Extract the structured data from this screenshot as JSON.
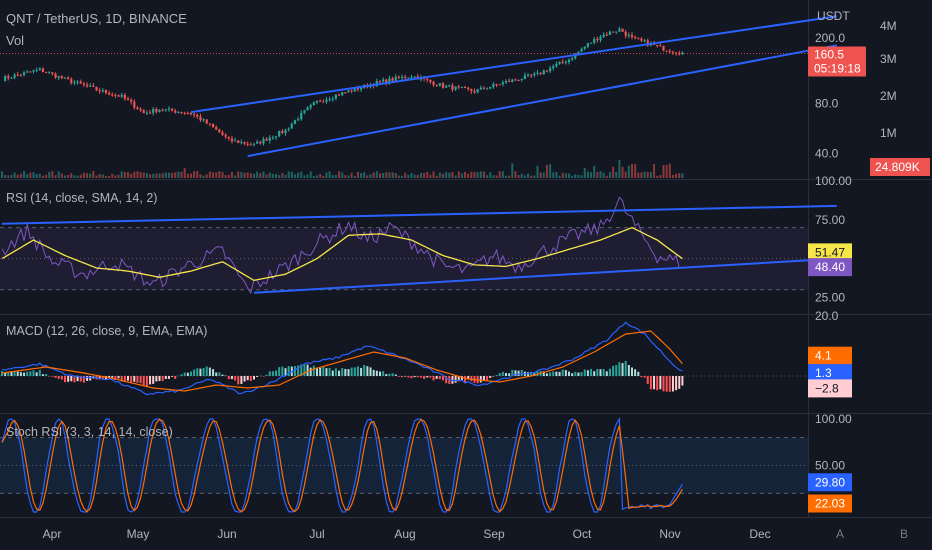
{
  "header": {
    "symbol_line": "QNT / TetherUS, 1D, BINANCE",
    "volume_label": "Vol",
    "currency": "USDT"
  },
  "colors": {
    "background": "#131722",
    "up": "#26a69a",
    "down": "#ef5350",
    "trendline": "#2962ff",
    "rsi_line": "#7e57c2",
    "rsi_ma": "#f7e64a",
    "macd_line": "#2962ff",
    "signal_line": "#ff6d00",
    "stoch_k": "#2962ff",
    "stoch_d": "#ff6d00"
  },
  "bottom_bar": {
    "a": "A",
    "b": "B"
  },
  "chart_data": [
    {
      "type": "candlestick",
      "panel": "price",
      "x_ticks": [
        "Apr",
        "May",
        "Jun",
        "Jul",
        "Aug",
        "Sep",
        "Oct",
        "Nov",
        "Dec"
      ],
      "y_ticks": [
        "200.0",
        "80.0",
        "40.0"
      ],
      "y_scale": "log",
      "ylim": [
        30,
        320
      ],
      "volume_ticks": [
        "4M",
        "3M",
        "2M",
        "1M"
      ],
      "price_keypoints": [
        [
          0,
          113
        ],
        [
          12,
          128
        ],
        [
          20,
          112
        ],
        [
          30,
          97
        ],
        [
          38,
          88
        ],
        [
          45,
          70
        ],
        [
          50,
          74
        ],
        [
          60,
          70
        ],
        [
          72,
          48
        ],
        [
          80,
          45
        ],
        [
          90,
          55
        ],
        [
          100,
          82
        ],
        [
          110,
          95
        ],
        [
          120,
          108
        ],
        [
          130,
          118
        ],
        [
          140,
          102
        ],
        [
          150,
          95
        ],
        [
          160,
          108
        ],
        [
          170,
          120
        ],
        [
          180,
          148
        ],
        [
          190,
          205
        ],
        [
          196,
          225
        ],
        [
          200,
          198
        ],
        [
          210,
          172
        ],
        [
          216,
          162
        ]
      ],
      "last_price": "160.5",
      "countdown": "05:19:18",
      "last_volume": "24.809K",
      "channel": {
        "upper": [
          [
            60,
            71
          ],
          [
            265,
            270
          ]
        ],
        "lower": [
          [
            78,
            38.5
          ],
          [
            265,
            180
          ]
        ]
      }
    },
    {
      "type": "line",
      "panel": "rsi",
      "title": "RSI (14, close, SMA, 14, 2)",
      "y_ticks": [
        "100.00",
        "75.00",
        "25.00"
      ],
      "ylim": [
        15,
        100
      ],
      "levels": [
        70,
        50,
        30
      ],
      "series": [
        {
          "values_keypoints": [
            [
              0,
              55
            ],
            [
              8,
              68
            ],
            [
              16,
              48
            ],
            [
              26,
              40
            ],
            [
              36,
              48
            ],
            [
              48,
              33
            ],
            [
              58,
              45
            ],
            [
              70,
              55
            ],
            [
              78,
              30
            ],
            [
              90,
              45
            ],
            [
              100,
              60
            ],
            [
              110,
              72
            ],
            [
              116,
              62
            ],
            [
              124,
              70
            ],
            [
              132,
              58
            ],
            [
              140,
              45
            ],
            [
              148,
              42
            ],
            [
              156,
              52
            ],
            [
              164,
              45
            ],
            [
              172,
              55
            ],
            [
              182,
              65
            ],
            [
              190,
              70
            ],
            [
              196,
              87
            ],
            [
              202,
              68
            ],
            [
              208,
              52
            ],
            [
              216,
              47
            ]
          ]
        },
        {
          "values_keypoints": [
            [
              0,
              50
            ],
            [
              10,
              62
            ],
            [
              20,
              52
            ],
            [
              30,
              44
            ],
            [
              40,
              42
            ],
            [
              50,
              38
            ],
            [
              60,
              42
            ],
            [
              70,
              48
            ],
            [
              80,
              36
            ],
            [
              90,
              40
            ],
            [
              100,
              50
            ],
            [
              110,
              65
            ],
            [
              120,
              66
            ],
            [
              130,
              62
            ],
            [
              140,
              52
            ],
            [
              150,
              46
            ],
            [
              160,
              45
            ],
            [
              170,
              50
            ],
            [
              180,
              56
            ],
            [
              190,
              62
            ],
            [
              200,
              70
            ],
            [
              208,
              62
            ],
            [
              216,
              50
            ]
          ]
        }
      ],
      "last_rsi_ma": "51.47",
      "last_rsi": "48.40",
      "trendlines": {
        "upper": [
          [
            0,
            72.5
          ],
          [
            265,
            84
          ]
        ],
        "lower": [
          [
            80,
            28
          ],
          [
            265,
            50
          ]
        ]
      }
    },
    {
      "type": "line",
      "panel": "macd",
      "title": "MACD (12, 26, close, 9, EMA, EMA)",
      "y_ticks": [
        "20.0"
      ],
      "ylim": [
        -12,
        20
      ],
      "series": [
        {
          "values_keypoints": [
            [
              0,
              2
            ],
            [
              12,
              4
            ],
            [
              22,
              0
            ],
            [
              34,
              -1
            ],
            [
              46,
              -6
            ],
            [
              56,
              -5
            ],
            [
              66,
              -1
            ],
            [
              76,
              -6
            ],
            [
              86,
              -2
            ],
            [
              96,
              4
            ],
            [
              106,
              6
            ],
            [
              116,
              10
            ],
            [
              122,
              8
            ],
            [
              132,
              4
            ],
            [
              142,
              -1
            ],
            [
              152,
              -3
            ],
            [
              162,
              0
            ],
            [
              172,
              2
            ],
            [
              182,
              6
            ],
            [
              192,
              12
            ],
            [
              198,
              18
            ],
            [
              204,
              14
            ],
            [
              212,
              5
            ],
            [
              216,
              1.3
            ]
          ]
        },
        {
          "values_keypoints": [
            [
              0,
              1
            ],
            [
              14,
              3
            ],
            [
              26,
              1
            ],
            [
              36,
              -1
            ],
            [
              48,
              -4
            ],
            [
              58,
              -5
            ],
            [
              68,
              -3
            ],
            [
              78,
              -4
            ],
            [
              88,
              -3
            ],
            [
              98,
              2
            ],
            [
              108,
              5
            ],
            [
              118,
              8
            ],
            [
              128,
              6
            ],
            [
              138,
              2
            ],
            [
              148,
              -1
            ],
            [
              158,
              -2
            ],
            [
              168,
              0
            ],
            [
              178,
              3
            ],
            [
              188,
              8
            ],
            [
              198,
              14
            ],
            [
              206,
              15
            ],
            [
              212,
              9
            ],
            [
              216,
              4.1
            ]
          ]
        }
      ],
      "last_signal": "4.1",
      "last_macd": "1.3",
      "last_hist": "−2.8"
    },
    {
      "type": "line",
      "panel": "stoch_rsi",
      "title": "Stoch RSI (3, 3, 14, 14, close)",
      "y_ticks": [
        "100.00",
        "50.00"
      ],
      "ylim": [
        0,
        100
      ],
      "levels": [
        80,
        20
      ],
      "last_k": "29.80",
      "last_d": "22.03"
    }
  ]
}
